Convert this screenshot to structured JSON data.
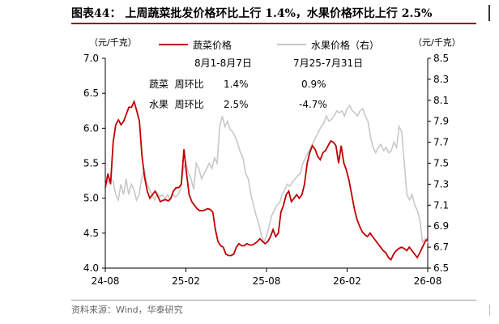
{
  "header": {
    "title_prefix": "图表44：",
    "title_main": "上周蔬菜批发价格环比上行 1.4%，水果价格环比上行 2.5%"
  },
  "source": "资料来源：Wind，华泰研究",
  "chart_data": {
    "type": "line",
    "colors": {
      "vegetable": "#c00000",
      "fruit": "#c8c8c8",
      "axis": "#000000"
    },
    "y_left": {
      "unit": "（元/千克）",
      "range": [
        4.0,
        7.0
      ],
      "ticks": [
        "4.0",
        "4.5",
        "5.0",
        "5.5",
        "6.0",
        "6.5",
        "7.0"
      ]
    },
    "y_right": {
      "unit": "（元/千克）",
      "range": [
        6.5,
        8.5
      ],
      "ticks": [
        "6.5",
        "6.7",
        "6.9",
        "7.1",
        "7.3",
        "7.5",
        "7.7",
        "7.9",
        "8.1",
        "8.3",
        "8.5"
      ]
    },
    "x_ticks": [
      "24-08",
      "25-02",
      "25-08",
      "26-02",
      "26-08"
    ],
    "legend": [
      "蔬菜价格",
      "水果价格（右）"
    ],
    "annotations": {
      "col1_header": "8月1-8月7日",
      "col2_header": "7月25-7月31日",
      "row1_label": "蔬菜  周环比",
      "row1_v1": "1.4%",
      "row1_v2": "0.9%",
      "row2_label": "水果  周环比",
      "row2_v1": "2.5%",
      "row2_v2": "-4.7%"
    },
    "series": [
      {
        "name": "蔬菜价格",
        "axis": "left",
        "values": [
          5.15,
          5.35,
          5.2,
          5.8,
          6.05,
          6.12,
          6.05,
          6.1,
          6.2,
          6.3,
          6.3,
          6.38,
          6.25,
          6.1,
          5.6,
          5.3,
          5.1,
          5.0,
          5.05,
          5.1,
          5.03,
          4.95,
          4.97,
          4.98,
          4.96,
          5.0,
          5.1,
          5.15,
          5.15,
          5.2,
          5.7,
          5.35,
          5.05,
          4.95,
          4.9,
          4.85,
          4.82,
          4.82,
          4.83,
          4.85,
          4.84,
          4.8,
          4.55,
          4.38,
          4.32,
          4.3,
          4.2,
          4.18,
          4.18,
          4.2,
          4.3,
          4.35,
          4.32,
          4.32,
          4.35,
          4.33,
          4.33,
          4.35,
          4.38,
          4.42,
          4.38,
          4.35,
          4.38,
          4.45,
          4.55,
          4.45,
          4.5,
          4.8,
          4.9,
          5.05,
          5.1,
          4.95,
          5.0,
          5.05,
          5.0,
          5.05,
          5.2,
          5.5,
          5.65,
          5.75,
          5.7,
          5.6,
          5.55,
          5.65,
          5.68,
          5.75,
          5.82,
          5.8,
          5.75,
          5.5,
          5.75,
          5.5,
          5.4,
          5.25,
          5.05,
          4.85,
          4.7,
          4.6,
          4.52,
          4.48,
          4.45,
          4.5,
          4.45,
          4.4,
          4.35,
          4.3,
          4.25,
          4.22,
          4.15,
          4.12,
          4.2,
          4.25,
          4.28,
          4.3,
          4.28,
          4.25,
          4.3,
          4.25,
          4.2,
          4.15,
          4.22,
          4.3,
          4.38,
          4.42
        ]
      },
      {
        "name": "水果价格（右）",
        "axis": "right",
        "values": [
          7.3,
          7.32,
          7.35,
          7.33,
          7.2,
          7.15,
          7.3,
          7.2,
          7.35,
          7.2,
          7.3,
          7.25,
          7.15,
          7.2,
          7.35,
          7.45,
          7.3,
          7.25,
          7.2,
          7.15,
          7.22,
          7.18,
          7.2,
          7.16,
          7.2,
          7.15,
          7.2,
          7.18,
          7.2,
          7.25,
          7.45,
          7.5,
          7.4,
          7.35,
          7.25,
          7.5,
          7.45,
          7.35,
          7.4,
          7.45,
          7.5,
          7.45,
          7.55,
          7.5,
          7.85,
          7.95,
          7.85,
          7.9,
          7.82,
          7.8,
          7.75,
          7.68,
          7.6,
          7.55,
          7.4,
          7.35,
          7.2,
          7.1,
          7.0,
          6.92,
          6.82,
          6.75,
          6.8,
          6.9,
          7.0,
          7.05,
          7.1,
          7.12,
          7.2,
          7.25,
          7.3,
          7.28,
          7.32,
          7.35,
          7.38,
          7.4,
          7.5,
          7.55,
          7.6,
          7.65,
          7.7,
          7.75,
          7.8,
          7.85,
          7.88,
          7.95,
          7.9,
          7.92,
          7.95,
          8.0,
          7.98,
          8.0,
          7.95,
          8.02,
          8.05,
          8.0,
          7.98,
          7.95,
          8.0,
          8.02,
          7.95,
          7.9,
          7.75,
          7.65,
          7.6,
          7.65,
          7.68,
          7.62,
          7.65,
          7.6,
          7.62,
          7.7,
          7.65,
          7.85,
          7.8,
          7.5,
          7.2,
          7.15,
          7.2,
          7.1,
          7.05,
          6.95,
          6.75,
          6.78,
          6.74
        ]
      }
    ]
  }
}
